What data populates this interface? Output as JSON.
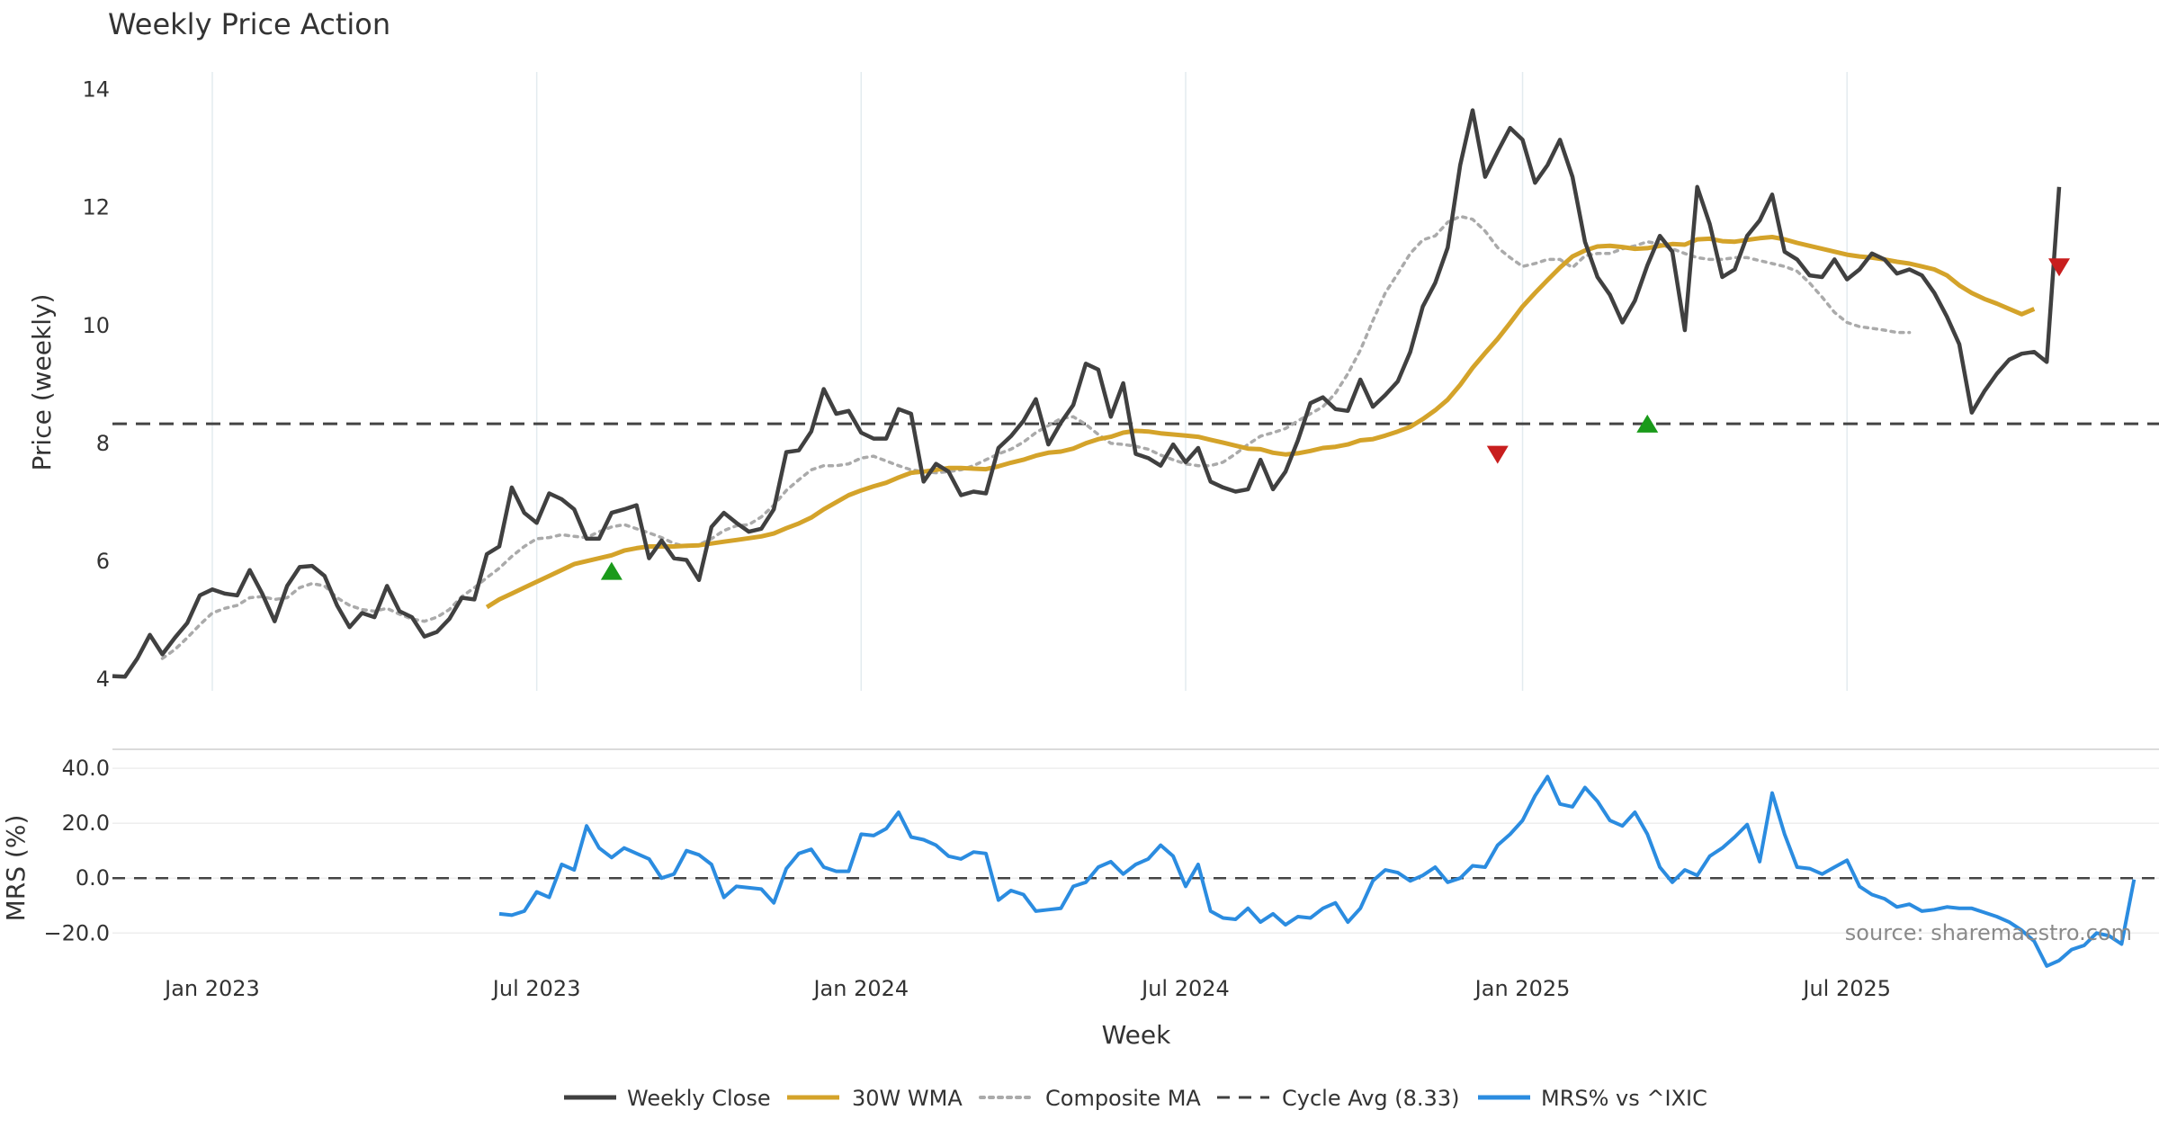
{
  "chart_data": {
    "type": "line",
    "title": "Weekly Price Action",
    "source_note": "source: sharemaestro.com",
    "xlabel": "Week",
    "x_tick_labels": [
      "Jan 2023",
      "Jul 2023",
      "Jan 2024",
      "Jul 2024",
      "Jan 2025",
      "Jul 2025"
    ],
    "x_ticks": [
      "2023-01-02",
      "2023-07-03",
      "2024-01-01",
      "2024-07-01",
      "2025-01-06",
      "2025-07-07"
    ],
    "xlim": [
      "2022-11-07",
      "2025-12-29"
    ],
    "price_panel": {
      "ylabel": "Price (weekly)",
      "ylim": [
        3.8,
        14.3
      ],
      "y_ticks": [
        4,
        6,
        8,
        10,
        12,
        14
      ],
      "cycle_avg": 8.33,
      "weeks_start": "2022-11-07",
      "weekly_close": [
        4.05,
        4.04,
        4.35,
        4.75,
        4.42,
        4.7,
        4.95,
        5.42,
        5.52,
        5.45,
        5.42,
        5.85,
        5.45,
        4.98,
        5.58,
        5.9,
        5.92,
        5.75,
        5.25,
        4.88,
        5.12,
        5.05,
        5.58,
        5.15,
        5.05,
        4.72,
        4.8,
        5.02,
        5.38,
        5.35,
        6.12,
        6.25,
        7.25,
        6.82,
        6.65,
        7.15,
        7.05,
        6.88,
        6.38,
        6.38,
        6.82,
        6.88,
        6.95,
        6.05,
        6.35,
        6.05,
        6.02,
        5.68,
        6.58,
        6.82,
        6.65,
        6.5,
        6.55,
        6.88,
        7.85,
        7.88,
        8.2,
        8.92,
        8.5,
        8.55,
        8.18,
        8.08,
        8.08,
        8.58,
        8.5,
        7.35,
        7.65,
        7.52,
        7.12,
        7.18,
        7.15,
        7.92,
        8.12,
        8.38,
        8.75,
        7.98,
        8.35,
        8.65,
        9.35,
        9.25,
        8.45,
        9.02,
        7.82,
        7.75,
        7.62,
        7.98,
        7.68,
        7.92,
        7.35,
        7.25,
        7.18,
        7.22,
        7.72,
        7.22,
        7.52,
        8.05,
        8.68,
        8.78,
        8.58,
        8.55,
        9.08,
        8.62,
        8.82,
        9.05,
        9.55,
        10.32,
        10.72,
        11.32,
        12.72,
        13.65,
        12.52,
        12.95,
        13.35,
        13.15,
        12.42,
        12.72,
        13.15,
        12.52,
        11.42,
        10.82,
        10.52,
        10.05,
        10.42,
        11.02,
        11.52,
        11.25,
        9.92,
        12.35,
        11.72,
        10.82,
        10.95,
        11.52,
        11.78,
        12.22,
        11.25,
        11.12,
        10.85,
        10.82,
        11.12,
        10.78,
        10.95,
        11.22,
        11.12,
        10.88,
        10.95,
        10.85,
        10.55,
        10.15,
        9.68,
        8.52,
        8.88,
        9.18,
        9.42,
        9.52,
        9.55,
        9.38,
        12.35
      ],
      "wma_30w": {
        "start_index": 30,
        "values": [
          5.22,
          5.35,
          5.45,
          5.55,
          5.65,
          5.75,
          5.85,
          5.95,
          6.0,
          6.05,
          6.1,
          6.18,
          6.22,
          6.25,
          6.25,
          6.25,
          6.26,
          6.27,
          6.3,
          6.33,
          6.36,
          6.39,
          6.42,
          6.47,
          6.56,
          6.64,
          6.74,
          6.88,
          7.0,
          7.12,
          7.2,
          7.27,
          7.33,
          7.42,
          7.5,
          7.52,
          7.55,
          7.58,
          7.58,
          7.57,
          7.56,
          7.61,
          7.67,
          7.72,
          7.79,
          7.84,
          7.86,
          7.91,
          8.0,
          8.07,
          8.11,
          8.18,
          8.21,
          8.2,
          8.17,
          8.15,
          8.13,
          8.11,
          8.06,
          8.01,
          7.96,
          7.91,
          7.9,
          7.84,
          7.81,
          7.83,
          7.87,
          7.92,
          7.94,
          7.98,
          8.05,
          8.07,
          8.13,
          8.2,
          8.28,
          8.41,
          8.56,
          8.74,
          8.99,
          9.28,
          9.53,
          9.77,
          10.04,
          10.32,
          10.55,
          10.77,
          10.98,
          11.17,
          11.27,
          11.34,
          11.35,
          11.33,
          11.3,
          11.31,
          11.35,
          11.38,
          11.37,
          11.46,
          11.47,
          11.43,
          11.42,
          11.45,
          11.48,
          11.5,
          11.46,
          11.4,
          11.35,
          11.3,
          11.25,
          11.2,
          11.17,
          11.15,
          11.12,
          11.08,
          11.05,
          11.0,
          10.95,
          10.85,
          10.68,
          10.55,
          10.45,
          10.37,
          10.28,
          10.19,
          10.28
        ]
      },
      "composite_ma": {
        "start_index": 4,
        "values": [
          4.35,
          4.5,
          4.7,
          4.92,
          5.12,
          5.2,
          5.25,
          5.38,
          5.4,
          5.35,
          5.38,
          5.55,
          5.62,
          5.58,
          5.38,
          5.25,
          5.18,
          5.15,
          5.2,
          5.1,
          5.02,
          4.98,
          5.05,
          5.18,
          5.4,
          5.55,
          5.72,
          5.88,
          6.08,
          6.25,
          6.38,
          6.4,
          6.45,
          6.42,
          6.4,
          6.5,
          6.58,
          6.62,
          6.55,
          6.48,
          6.4,
          6.3,
          6.25,
          6.28,
          6.38,
          6.52,
          6.6,
          6.62,
          6.75,
          6.95,
          7.2,
          7.38,
          7.55,
          7.62,
          7.62,
          7.65,
          7.75,
          7.78,
          7.7,
          7.62,
          7.55,
          7.52,
          7.5,
          7.52,
          7.55,
          7.62,
          7.72,
          7.82,
          7.9,
          8.02,
          8.18,
          8.3,
          8.42,
          8.45,
          8.32,
          8.15,
          8.0,
          7.98,
          7.95,
          7.9,
          7.8,
          7.72,
          7.65,
          7.62,
          7.62,
          7.68,
          7.82,
          7.98,
          8.12,
          8.18,
          8.25,
          8.38,
          8.5,
          8.62,
          8.85,
          9.18,
          9.58,
          10.08,
          10.55,
          10.88,
          11.22,
          11.45,
          11.52,
          11.75,
          11.85,
          11.8,
          11.6,
          11.32,
          11.15,
          11.0,
          11.05,
          11.12,
          11.12,
          10.98,
          11.18,
          11.22,
          11.22,
          11.3,
          11.35,
          11.42,
          11.38,
          11.3,
          11.22,
          11.15,
          11.12,
          11.12,
          11.15,
          11.15,
          11.1,
          11.05,
          11.0,
          10.92,
          10.72,
          10.48,
          10.22,
          10.05,
          9.98,
          9.95,
          9.92,
          9.88,
          9.88
        ]
      },
      "buy_signals": [
        {
          "index": 40,
          "value": 5.82
        },
        {
          "index": 123,
          "value": 8.32
        }
      ],
      "sell_signals": [
        {
          "index": 111,
          "value": 7.82
        },
        {
          "index": 156,
          "value": 11.0
        }
      ]
    },
    "mrs_panel": {
      "ylabel": "MRS (%)",
      "ylim": [
        -34,
        43
      ],
      "y_ticks": [
        -20,
        0,
        20,
        40
      ],
      "y_tick_labels": [
        "−20.0",
        "0.0",
        "20.0",
        "40.0"
      ],
      "zero_line": 0,
      "mrs": {
        "start_index": 31,
        "values": [
          -13,
          -13.5,
          -12,
          -5,
          -7,
          5,
          3,
          19,
          11,
          7.5,
          11,
          9,
          7,
          0,
          1.5,
          10,
          8.5,
          5,
          -7,
          -3,
          -3.5,
          -4,
          -9,
          3.5,
          9,
          10.5,
          4,
          2.5,
          2.5,
          16,
          15.5,
          18,
          24,
          15,
          14,
          12,
          8,
          7,
          9.5,
          9,
          -8,
          -4.5,
          -6,
          -12,
          -11.5,
          -11,
          -3,
          -1.5,
          4,
          6,
          1.5,
          5,
          7,
          12,
          8,
          -3,
          5,
          -12,
          -14.5,
          -15,
          -11,
          -16,
          -13,
          -17,
          -14,
          -14.5,
          -11,
          -9,
          -16,
          -11,
          -1,
          3,
          2,
          -1,
          1,
          4,
          -1.5,
          0,
          4.5,
          4,
          12,
          16,
          21,
          30,
          37,
          27,
          26,
          33,
          28,
          21,
          19,
          24,
          16,
          4,
          -1.5,
          3,
          1,
          8,
          11,
          15,
          19.5,
          6,
          31,
          16,
          4,
          3.5,
          1.5,
          4,
          6.5,
          -3,
          -6,
          -7.5,
          -10.5,
          -9.5,
          -12,
          -11.5,
          -10.5,
          -11,
          -11,
          -12.5,
          -14,
          -16,
          -19,
          -23,
          -32,
          -30,
          -26,
          -24.5,
          -20,
          -21,
          -24,
          -0.5
        ]
      }
    },
    "legend_position": "bottom-center",
    "series": [
      {
        "name": "Weekly Close",
        "color": "#404040",
        "style": "solid"
      },
      {
        "name": "30W WMA",
        "color": "#d4a32a",
        "style": "solid"
      },
      {
        "name": "Composite MA",
        "color": "#aaaaaa",
        "style": "dotted"
      },
      {
        "name": "Cycle Avg (8.33)",
        "color": "#404040",
        "style": "dashed"
      },
      {
        "name": "MRS% vs ^IXIC",
        "color": "#2b8ce0",
        "style": "solid"
      }
    ],
    "marker_colors": {
      "buy": "#1a9a1a",
      "sell": "#c81e1e"
    }
  }
}
